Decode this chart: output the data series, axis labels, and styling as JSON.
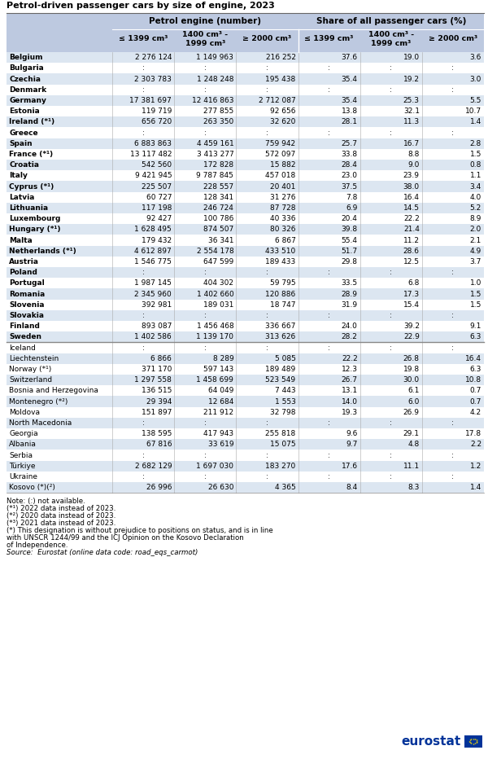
{
  "title": "Petrol-driven passenger cars by size of engine, 2023",
  "rows": [
    [
      "Belgium",
      "2 276 124",
      "1 149 963",
      "216 252",
      "37.6",
      "19.0",
      "3.6",
      true
    ],
    [
      "Bulgaria",
      ":",
      ":",
      ":",
      ":",
      ":",
      ":",
      true
    ],
    [
      "Czechia",
      "2 303 783",
      "1 248 248",
      "195 438",
      "35.4",
      "19.2",
      "3.0",
      true
    ],
    [
      "Denmark",
      ":",
      ":",
      ":",
      ":",
      ":",
      ":",
      true
    ],
    [
      "Germany",
      "17 381 697",
      "12 416 863",
      "2 712 087",
      "35.4",
      "25.3",
      "5.5",
      true
    ],
    [
      "Estonia",
      "119 719",
      "277 855",
      "92 656",
      "13.8",
      "32.1",
      "10.7",
      true
    ],
    [
      "Ireland (*¹)",
      "656 720",
      "263 350",
      "32 620",
      "28.1",
      "11.3",
      "1.4",
      true
    ],
    [
      "Greece",
      ":",
      ":",
      ":",
      ":",
      ":",
      ":",
      true
    ],
    [
      "Spain",
      "6 883 863",
      "4 459 161",
      "759 942",
      "25.7",
      "16.7",
      "2.8",
      true
    ],
    [
      "France (*¹)",
      "13 117 482",
      "3 413 277",
      "572 097",
      "33.8",
      "8.8",
      "1.5",
      true
    ],
    [
      "Croatia",
      "542 560",
      "172 828",
      "15 882",
      "28.4",
      "9.0",
      "0.8",
      true
    ],
    [
      "Italy",
      "9 421 945",
      "9 787 845",
      "457 018",
      "23.0",
      "23.9",
      "1.1",
      true
    ],
    [
      "Cyprus (*¹)",
      "225 507",
      "228 557",
      "20 401",
      "37.5",
      "38.0",
      "3.4",
      true
    ],
    [
      "Latvia",
      "60 727",
      "128 341",
      "31 276",
      "7.8",
      "16.4",
      "4.0",
      true
    ],
    [
      "Lithuania",
      "117 198",
      "246 724",
      "87 728",
      "6.9",
      "14.5",
      "5.2",
      true
    ],
    [
      "Luxembourg",
      "92 427",
      "100 786",
      "40 336",
      "20.4",
      "22.2",
      "8.9",
      true
    ],
    [
      "Hungary (*¹)",
      "1 628 495",
      "874 507",
      "80 326",
      "39.8",
      "21.4",
      "2.0",
      true
    ],
    [
      "Malta",
      "179 432",
      "36 341",
      "6 867",
      "55.4",
      "11.2",
      "2.1",
      true
    ],
    [
      "Netherlands (*¹)",
      "4 612 897",
      "2 554 178",
      "433 510",
      "51.7",
      "28.6",
      "4.9",
      true
    ],
    [
      "Austria",
      "1 546 775",
      "647 599",
      "189 433",
      "29.8",
      "12.5",
      "3.7",
      true
    ],
    [
      "Poland",
      ":",
      ":",
      ":",
      ":",
      ":",
      ":",
      true
    ],
    [
      "Portugal",
      "1 987 145",
      "404 302",
      "59 795",
      "33.5",
      "6.8",
      "1.0",
      true
    ],
    [
      "Romania",
      "2 345 960",
      "1 402 660",
      "120 886",
      "28.9",
      "17.3",
      "1.5",
      true
    ],
    [
      "Slovenia",
      "392 981",
      "189 031",
      "18 747",
      "31.9",
      "15.4",
      "1.5",
      true
    ],
    [
      "Slovakia",
      ":",
      ":",
      ":",
      ":",
      ":",
      ":",
      true
    ],
    [
      "Finland",
      "893 087",
      "1 456 468",
      "336 667",
      "24.0",
      "39.2",
      "9.1",
      true
    ],
    [
      "Sweden",
      "1 402 586",
      "1 139 170",
      "313 626",
      "28.2",
      "22.9",
      "6.3",
      true
    ],
    [
      "Iceland",
      ":",
      ":",
      ":",
      ":",
      ":",
      ":",
      false
    ],
    [
      "Liechtenstein",
      "6 866",
      "8 289",
      "5 085",
      "22.2",
      "26.8",
      "16.4",
      false
    ],
    [
      "Norway (*¹)",
      "371 170",
      "597 143",
      "189 489",
      "12.3",
      "19.8",
      "6.3",
      false
    ],
    [
      "Switzerland",
      "1 297 558",
      "1 458 699",
      "523 549",
      "26.7",
      "30.0",
      "10.8",
      false
    ],
    [
      "Bosnia and Herzegovina",
      "136 515",
      "64 049",
      "7 443",
      "13.1",
      "6.1",
      "0.7",
      false
    ],
    [
      "Montenegro (*²)",
      "29 394",
      "12 684",
      "1 553",
      "14.0",
      "6.0",
      "0.7",
      false
    ],
    [
      "Moldova",
      "151 897",
      "211 912",
      "32 798",
      "19.3",
      "26.9",
      "4.2",
      false
    ],
    [
      "North Macedonia",
      ":",
      ":",
      ":",
      ":",
      ":",
      ":",
      false
    ],
    [
      "Georgia",
      "138 595",
      "417 943",
      "255 818",
      "9.6",
      "29.1",
      "17.8",
      false
    ],
    [
      "Albania",
      "67 816",
      "33 619",
      "15 075",
      "9.7",
      "4.8",
      "2.2",
      false
    ],
    [
      "Serbia",
      ":",
      ":",
      ":",
      ":",
      ":",
      ":",
      false
    ],
    [
      "Türkiye",
      "2 682 129",
      "1 697 030",
      "183 270",
      "17.6",
      "11.1",
      "1.2",
      false
    ],
    [
      "Ukraine",
      ":",
      ":",
      ":",
      ":",
      ":",
      ":",
      false
    ],
    [
      "Kosovo (*)(²)",
      "26 996",
      "26 630",
      "4 365",
      "8.4",
      "8.3",
      "1.4",
      false
    ]
  ],
  "notes": [
    [
      "Note: (:) not available.",
      false
    ],
    [
      "(*¹) 2022 data instead of 2023.",
      false
    ],
    [
      "(*²) 2020 data instead of 2023.",
      false
    ],
    [
      "(*³) 2021 data instead of 2023.",
      false
    ],
    [
      "(*) This designation is without prejudice to positions on status, and is in line",
      false
    ],
    [
      "with UNSCR 1244/99 and the ICJ Opinion on the Kosovo Declaration",
      false
    ],
    [
      "of Independence.",
      false
    ],
    [
      "Source:  Eurostat (online data code: road_eqs_carmot)",
      true
    ]
  ],
  "header_bg": "#bdc9e0",
  "row_bg_a": "#dce6f1",
  "row_bg_b": "#ffffff",
  "separator_after": [
    26
  ],
  "col_header1": [
    "Petrol engine (number)",
    "Share of all passenger cars (%)"
  ],
  "col_header2": [
    "≤ 1399 cm³",
    "1400 cm³ -\n1999 cm³",
    "≥ 2000 cm³",
    "≤ 1399 cm³",
    "1400 cm³ -\n1999 cm³",
    "≥ 2000 cm³"
  ]
}
